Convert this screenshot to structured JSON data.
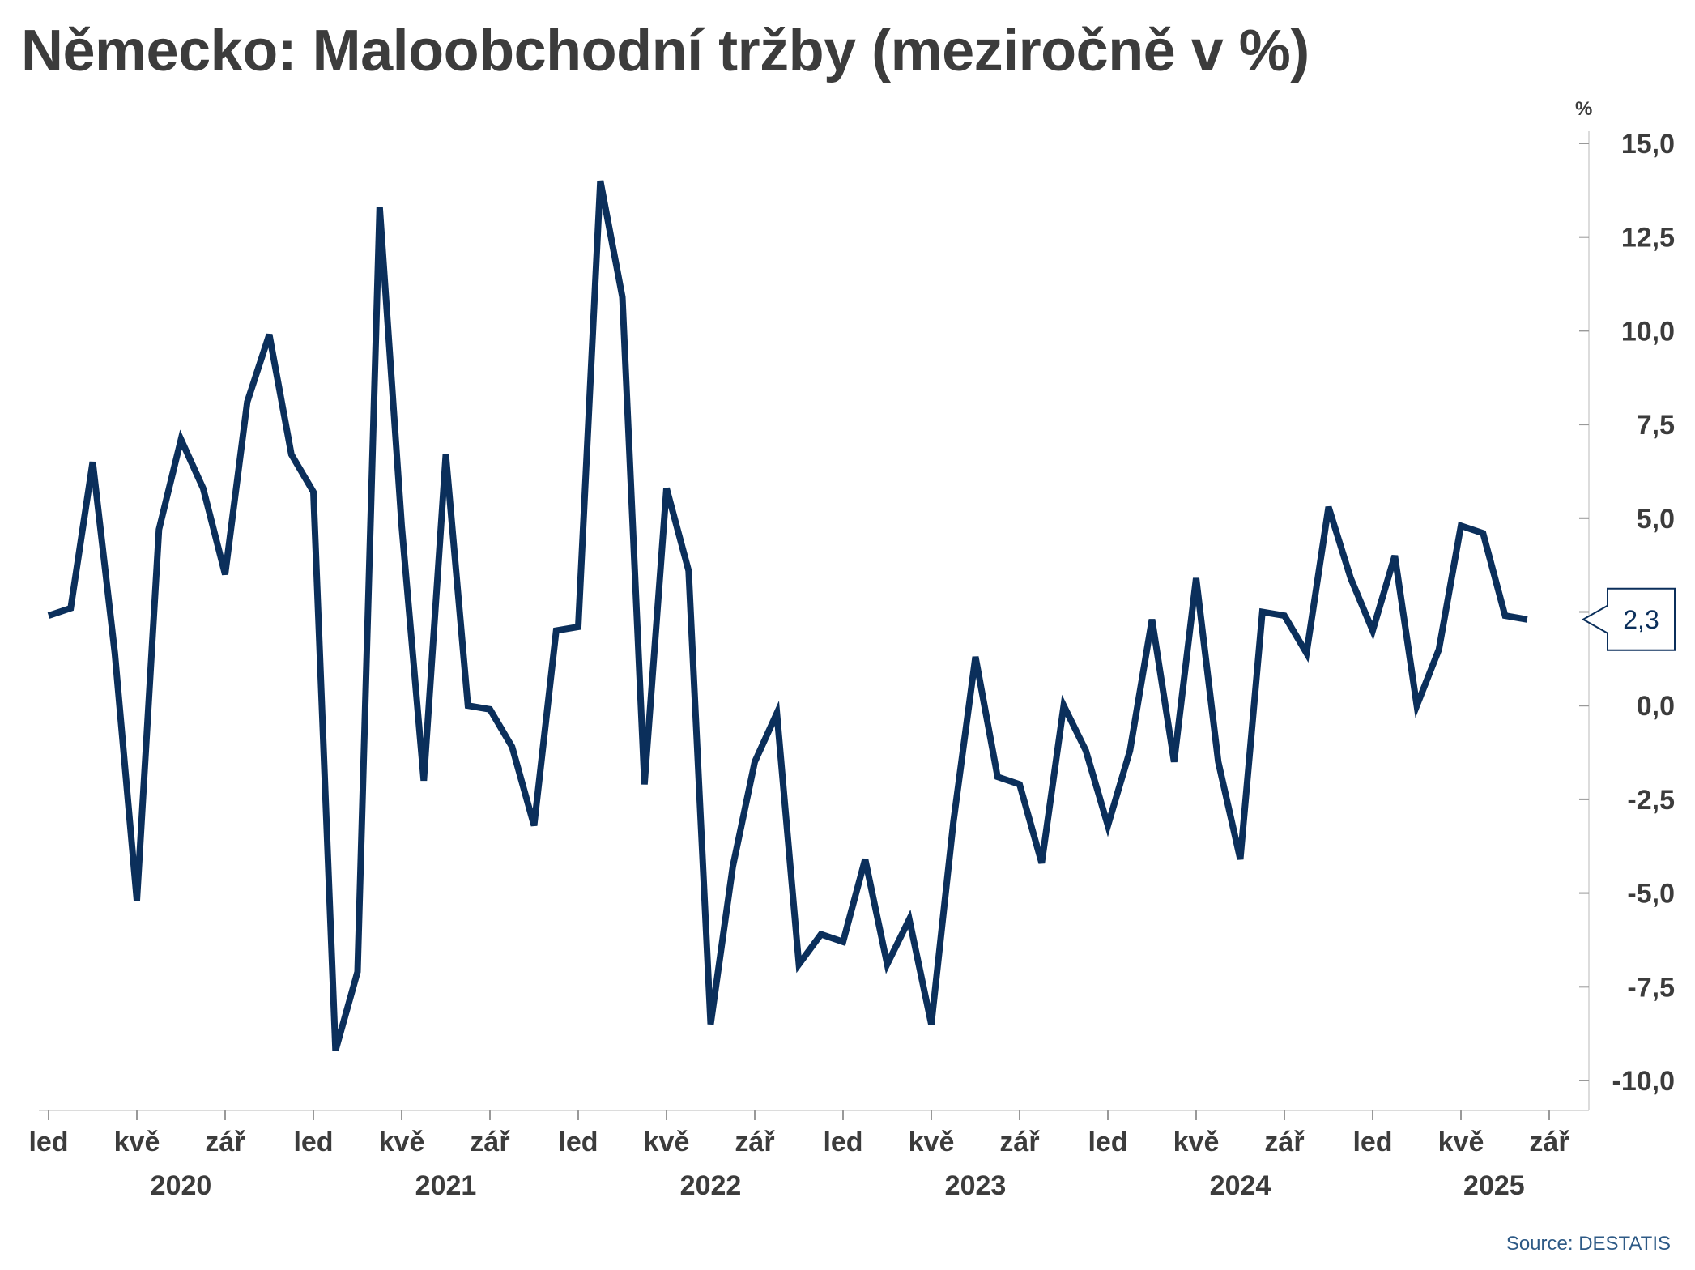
{
  "chart_data": {
    "type": "line",
    "title": "Německo: Maloobchodní tržby (meziročně v %)",
    "unit_label": "%",
    "source": "Source: DESTATIS",
    "ylim": [
      -10,
      15
    ],
    "yticks": [
      15,
      12.5,
      10,
      7.5,
      5,
      2.5,
      0,
      -2.5,
      -5,
      -7.5,
      -10
    ],
    "ytick_labels": [
      "15,0",
      "12,5",
      "10,0",
      "7,5",
      "5,0",
      "",
      "0,0",
      "-2,5",
      "-5,0",
      "-7,5",
      "-10,0"
    ],
    "x_month_ticks": [
      {
        "label": "led",
        "index": 0
      },
      {
        "label": "kvě",
        "index": 4
      },
      {
        "label": "zář",
        "index": 8
      },
      {
        "label": "led",
        "index": 12
      },
      {
        "label": "kvě",
        "index": 16
      },
      {
        "label": "zář",
        "index": 20
      },
      {
        "label": "led",
        "index": 24
      },
      {
        "label": "kvě",
        "index": 28
      },
      {
        "label": "zář",
        "index": 32
      },
      {
        "label": "led",
        "index": 36
      },
      {
        "label": "kvě",
        "index": 40
      },
      {
        "label": "zář",
        "index": 44
      },
      {
        "label": "led",
        "index": 48
      },
      {
        "label": "kvě",
        "index": 52
      },
      {
        "label": "zář",
        "index": 56
      },
      {
        "label": "led",
        "index": 60
      },
      {
        "label": "kvě",
        "index": 64
      },
      {
        "label": "zář",
        "index": 68
      }
    ],
    "x_year_labels": [
      {
        "label": "2020",
        "index": 6
      },
      {
        "label": "2021",
        "index": 18
      },
      {
        "label": "2022",
        "index": 30
      },
      {
        "label": "2023",
        "index": 42
      },
      {
        "label": "2024",
        "index": 54
      },
      {
        "label": "2025",
        "index": 65.5
      }
    ],
    "series": [
      {
        "color": "#0b2f5b",
        "values": [
          2.4,
          2.6,
          6.5,
          1.4,
          -5.2,
          4.7,
          7.1,
          5.8,
          3.5,
          8.1,
          9.9,
          6.7,
          5.7,
          -9.2,
          -7.1,
          13.3,
          4.8,
          -2.0,
          6.7,
          0.0,
          -0.1,
          -1.1,
          -3.2,
          2.0,
          2.1,
          14.0,
          10.9,
          -2.1,
          5.8,
          3.6,
          -8.5,
          -4.3,
          -1.5,
          -0.2,
          -6.9,
          -6.1,
          -6.3,
          -4.1,
          -6.9,
          -5.7,
          -8.5,
          -3.1,
          1.3,
          -1.9,
          -2.1,
          -4.2,
          0.0,
          -1.2,
          -3.2,
          -1.2,
          2.3,
          -1.5,
          3.4,
          -1.5,
          -4.1,
          2.5,
          2.4,
          1.4,
          5.3,
          3.4,
          2.0,
          4.0,
          0.0,
          1.5,
          4.8,
          4.6,
          2.4,
          2.3
        ]
      }
    ],
    "last_value_label": "2,3",
    "grid": false
  }
}
